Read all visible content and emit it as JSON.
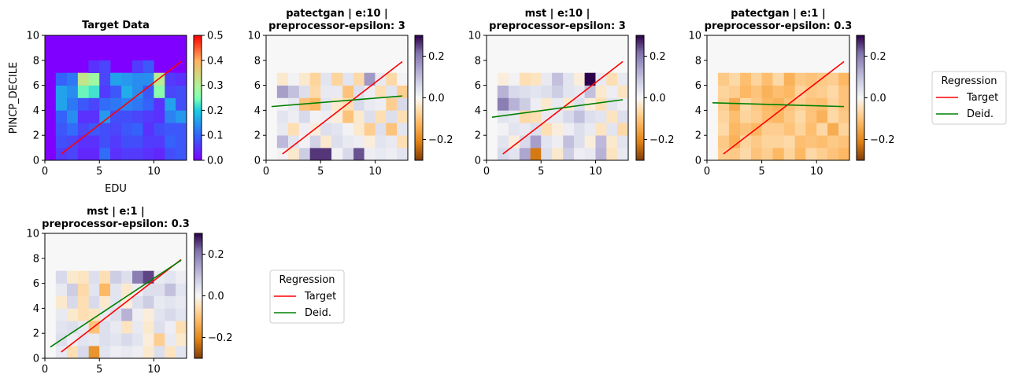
{
  "chart_data": [
    {
      "type": "heatmap",
      "title": [
        "Target Data"
      ],
      "xlabel": "EDU",
      "ylabel": "PINCP_DECILE",
      "xlim": [
        0,
        13
      ],
      "ylim": [
        0,
        10
      ],
      "xticks": [
        "0",
        "5",
        "10"
      ],
      "yticks": [
        "0",
        "2",
        "4",
        "6",
        "8",
        "10"
      ],
      "colorbar": {
        "cmap": "rainbow",
        "min": 0.0,
        "max": 0.5,
        "ticks": [
          "0.0",
          "0.1",
          "0.2",
          "0.3",
          "0.4",
          "0.5"
        ]
      },
      "cells": [
        [
          0.04,
          0.11,
          0.06,
          0.05
        ],
        [
          0.04,
          0.08,
          0.06,
          0.05
        ],
        [
          0.04,
          0.09,
          0.07,
          0.06
        ],
        [
          0.05,
          0.08,
          0.08,
          0.06
        ],
        [
          0.06,
          0.1,
          0.08,
          0.06
        ],
        [
          0.05,
          0.09,
          0.07,
          0.08
        ],
        [
          0.09,
          0.08,
          0.1,
          0.05
        ],
        [
          0.08,
          0.09,
          0.09,
          0.07
        ],
        [
          0.07,
          0.09,
          0.11,
          0.09
        ],
        [
          0.05,
          0.15,
          0.07,
          0.06
        ],
        [
          0.05,
          0.13,
          0.08,
          0.08
        ],
        [
          0.05,
          0.15,
          0.14,
          0.1
        ],
        [
          0.07,
          0.11,
          0.12,
          0.1
        ],
        [
          0.05,
          0.16,
          0.13,
          0.12
        ],
        [
          0.09,
          0.08,
          0.12,
          0.16
        ],
        [
          0.22,
          0.06,
          0.14,
          0.09
        ],
        [
          0.26,
          0.07,
          0.17,
          0.09
        ],
        [
          0.24,
          0.08,
          0.14,
          0.16
        ],
        [
          0.28,
          0.07,
          0.14,
          0.14
        ],
        [
          0.31,
          0.06,
          0.15,
          0.16
        ],
        [
          0.32,
          0.05,
          0.12,
          0.1
        ],
        [
          0.05,
          0.07,
          0.06,
          0.09
        ]
      ],
      "regression": [
        {
          "name": "Target",
          "x": [
            1.5,
            12.5
          ],
          "y": [
            0.5,
            7.9
          ]
        }
      ]
    },
    {
      "type": "heatmap",
      "title": [
        "patectgan | e:10 |",
        "preprocessor-epsilon: 3"
      ],
      "xlim": [
        0,
        13
      ],
      "ylim": [
        0,
        10
      ],
      "xticks": [
        "0",
        "5",
        "10"
      ],
      "yticks": [
        "0",
        "2",
        "4",
        "6",
        "8",
        "10"
      ],
      "colorbar": {
        "cmap": "PuOr",
        "min": -0.3,
        "max": 0.3,
        "ticks": [
          "−0.2",
          "0.0",
          "0.2"
        ]
      },
      "cells": [
        [
          0.26,
          0.26,
          0.24,
          0.02
        ],
        [
          0.03,
          0.02,
          0.06,
          0.01
        ],
        [
          0.08,
          0.04,
          -0.03,
          0.01
        ],
        [
          0.07,
          -0.03,
          0.02,
          -0.02
        ],
        [
          0.04,
          0.03,
          0.03,
          0.05
        ],
        [
          0.01,
          -0.05,
          0.04,
          0.11
        ],
        [
          -0.02,
          0.05,
          -0.03,
          -0.08
        ],
        [
          0.05,
          -0.1,
          0.01,
          0.04
        ],
        [
          0.02,
          0.04,
          -0.05,
          0.03
        ],
        [
          0.01,
          0.02,
          -0.03,
          0.05
        ],
        [
          -0.05,
          0.05,
          -0.1,
          -0.02
        ],
        [
          0.06,
          -0.05,
          0.02,
          0.04
        ],
        [
          -0.12,
          0.04,
          0.06,
          0.03
        ],
        [
          0.02,
          -0.08,
          -0.05,
          -0.03
        ],
        [
          -0.1,
          0.06,
          0.03,
          0.01
        ],
        [
          -0.06,
          0.03,
          0.05,
          0.02
        ],
        [
          -0.05,
          0.04,
          -0.1,
          0.03
        ],
        [
          0.05,
          -0.08,
          0.1,
          0.15
        ],
        [
          -0.07,
          0.04,
          -0.06,
          0.16
        ],
        [
          0.03,
          -0.06,
          0.04,
          -0.07
        ],
        [
          -0.03,
          0.01,
          0.01,
          -0.03
        ]
      ],
      "regression": [
        {
          "name": "Target",
          "x": [
            1.5,
            12.5
          ],
          "y": [
            0.5,
            7.9
          ]
        },
        {
          "name": "Deid.",
          "x": [
            0.5,
            12.5
          ],
          "y": [
            4.3,
            5.15
          ]
        }
      ]
    },
    {
      "type": "heatmap",
      "title": [
        "mst | e:10 |",
        "preprocessor-epsilon: 3"
      ],
      "xlim": [
        0,
        13
      ],
      "ylim": [
        0,
        10
      ],
      "xticks": [
        "0",
        "5",
        "10"
      ],
      "yticks": [
        "0",
        "2",
        "4",
        "6",
        "8",
        "10"
      ],
      "colorbar": {
        "cmap": "PuOr",
        "min": -0.3,
        "max": 0.3,
        "ticks": [
          "−0.2",
          "0.0",
          "0.2"
        ]
      },
      "cells": [
        [
          -0.22,
          0.05,
          0.02,
          0.03
        ],
        [
          0.12,
          -0.04,
          0.08,
          -0.03
        ],
        [
          0.14,
          0.03,
          0.04,
          0.06
        ],
        [
          0.15,
          0.04,
          0.05,
          -0.02
        ],
        [
          0.11,
          -0.03,
          0.1,
          0.02
        ],
        [
          0.06,
          0.04,
          -0.02,
          0.04
        ],
        [
          0.05,
          -0.05,
          0.05,
          0.03
        ],
        [
          -0.04,
          0.04,
          0.02,
          -0.02
        ],
        [
          0.03,
          -0.06,
          0.04,
          0.01
        ],
        [
          -0.05,
          0.03,
          0.1,
          0.05
        ],
        [
          0.04,
          -0.04,
          0.06,
          0.03
        ],
        [
          -0.06,
          0.05,
          0.03,
          0.04
        ],
        [
          0.02,
          -0.03,
          0.05,
          -0.02
        ],
        [
          -0.05,
          0.04,
          -0.03,
          0.03
        ],
        [
          0.08,
          0.02,
          0.12,
          0.2
        ],
        [
          0.04,
          0.05,
          0.03,
          0.1
        ],
        [
          -0.03,
          0.02,
          0.04,
          0.08
        ],
        [
          0.05,
          -0.04,
          0.06,
          0.12
        ],
        [
          -0.04,
          0.03,
          -0.02,
          0.3
        ],
        [
          0.03,
          -0.05,
          0.04,
          0.1
        ],
        [
          -0.05,
          0.03,
          0.01,
          -0.02
        ]
      ],
      "regression": [
        {
          "name": "Target",
          "x": [
            1.5,
            12.5
          ],
          "y": [
            0.5,
            7.9
          ]
        },
        {
          "name": "Deid.",
          "x": [
            0.5,
            12.5
          ],
          "y": [
            3.45,
            4.85
          ]
        }
      ]
    },
    {
      "type": "heatmap",
      "title": [
        "patectgan | e:1 |",
        "preprocessor-epsilon: 0.3"
      ],
      "xlim": [
        0,
        13
      ],
      "ylim": [
        0,
        10
      ],
      "xticks": [
        "0",
        "5",
        "10"
      ],
      "yticks": [
        "0",
        "2",
        "4",
        "6",
        "8",
        "10"
      ],
      "colorbar": {
        "cmap": "PuOr",
        "min": -0.3,
        "max": 0.3,
        "ticks": [
          "−0.2",
          "0.0",
          "0.2"
        ]
      },
      "cells": [
        [
          -0.1,
          -0.08,
          -0.12,
          -0.06
        ],
        [
          -0.08,
          -0.1,
          -0.07,
          -0.12
        ],
        [
          -0.06,
          -0.12,
          -0.09,
          -0.08
        ],
        [
          -0.09,
          -0.07,
          -0.11,
          -0.1
        ],
        [
          -0.11,
          -0.09,
          -0.06,
          -0.07
        ],
        [
          -0.07,
          -0.1,
          -0.13,
          -0.09
        ],
        [
          -0.12,
          -0.08,
          -0.07,
          -0.11
        ],
        [
          -0.06,
          -0.14,
          -0.1,
          -0.08
        ],
        [
          -0.1,
          -0.07,
          -0.12,
          -0.06
        ],
        [
          -0.08,
          -0.11,
          -0.06,
          -0.1
        ],
        [
          -0.13,
          -0.06,
          -0.09,
          -0.12
        ],
        [
          -0.07,
          -0.09,
          -0.11,
          -0.07
        ],
        [
          -0.09,
          -0.12,
          -0.08,
          -0.1
        ],
        [
          -0.11,
          -0.07,
          -0.1,
          -0.13
        ],
        [
          -0.06,
          -0.1,
          -0.14,
          -0.08
        ],
        [
          -0.1,
          -0.13,
          -0.07,
          -0.09
        ],
        [
          -0.08,
          -0.06,
          -0.12,
          -0.11
        ],
        [
          -0.12,
          -0.1,
          -0.08,
          -0.07
        ],
        [
          -0.07,
          -0.11,
          -0.09,
          -0.1
        ],
        [
          -0.09,
          -0.08,
          -0.13,
          -0.06
        ],
        [
          -0.11,
          -0.12,
          -0.06,
          -0.09
        ]
      ],
      "regression": [
        {
          "name": "Target",
          "x": [
            1.5,
            12.5
          ],
          "y": [
            0.5,
            7.9
          ]
        },
        {
          "name": "Deid.",
          "x": [
            0.5,
            12.5
          ],
          "y": [
            4.6,
            4.3
          ]
        }
      ]
    },
    {
      "type": "heatmap",
      "title": [
        "mst | e:1 |",
        "preprocessor-epsilon: 0.3"
      ],
      "xlim": [
        0,
        13
      ],
      "ylim": [
        0,
        10
      ],
      "xticks": [
        "0",
        "5",
        "10"
      ],
      "yticks": [
        "0",
        "2",
        "4",
        "6",
        "8",
        "10"
      ],
      "colorbar": {
        "cmap": "PuOr",
        "min": -0.3,
        "max": 0.3,
        "ticks": [
          "−0.2",
          "0.0",
          "0.2"
        ]
      },
      "cells": [
        [
          -0.18,
          0.04,
          0.02,
          -0.03
        ],
        [
          0.05,
          -0.04,
          0.03,
          0.02
        ],
        [
          0.06,
          0.04,
          -0.05,
          0.03
        ],
        [
          0.03,
          0.05,
          0.04,
          -0.02
        ],
        [
          -0.08,
          0.03,
          0.06,
          0.04
        ],
        [
          0.04,
          -0.03,
          0.02,
          0.05
        ],
        [
          -0.1,
          0.05,
          0.03,
          -0.03
        ],
        [
          0.05,
          0.02,
          -0.04,
          0.03
        ],
        [
          0.03,
          -0.05,
          0.05,
          0.04
        ],
        [
          -0.04,
          0.03,
          0.02,
          -0.02
        ],
        [
          0.04,
          0.06,
          0.12,
          0.05
        ],
        [
          -0.05,
          0.04,
          -0.03,
          0.03
        ],
        [
          0.06,
          -0.03,
          0.05,
          0.08
        ],
        [
          0.03,
          0.04,
          -0.02,
          0.04
        ],
        [
          -0.05,
          0.03,
          0.06,
          -0.03
        ],
        [
          0.04,
          -0.12,
          0.02,
          0.05
        ],
        [
          0.05,
          0.1,
          -0.03,
          0.04
        ],
        [
          -0.06,
          0.04,
          0.08,
          0.03
        ],
        [
          0.05,
          -0.05,
          0.2,
          0.25
        ],
        [
          0.03,
          0.04,
          0.05,
          0.08
        ],
        [
          -0.04,
          0.02,
          -0.03,
          0.06
        ]
      ],
      "regression": [
        {
          "name": "Target",
          "x": [
            1.5,
            12.5
          ],
          "y": [
            0.5,
            7.9
          ]
        },
        {
          "name": "Deid.",
          "x": [
            0.5,
            12.5
          ],
          "y": [
            0.9,
            7.85
          ]
        }
      ]
    }
  ],
  "legend": {
    "title": "Regression",
    "entries": [
      {
        "name": "Target",
        "color": "#ff0000"
      },
      {
        "name": "Deid.",
        "color": "#008000"
      }
    ]
  }
}
